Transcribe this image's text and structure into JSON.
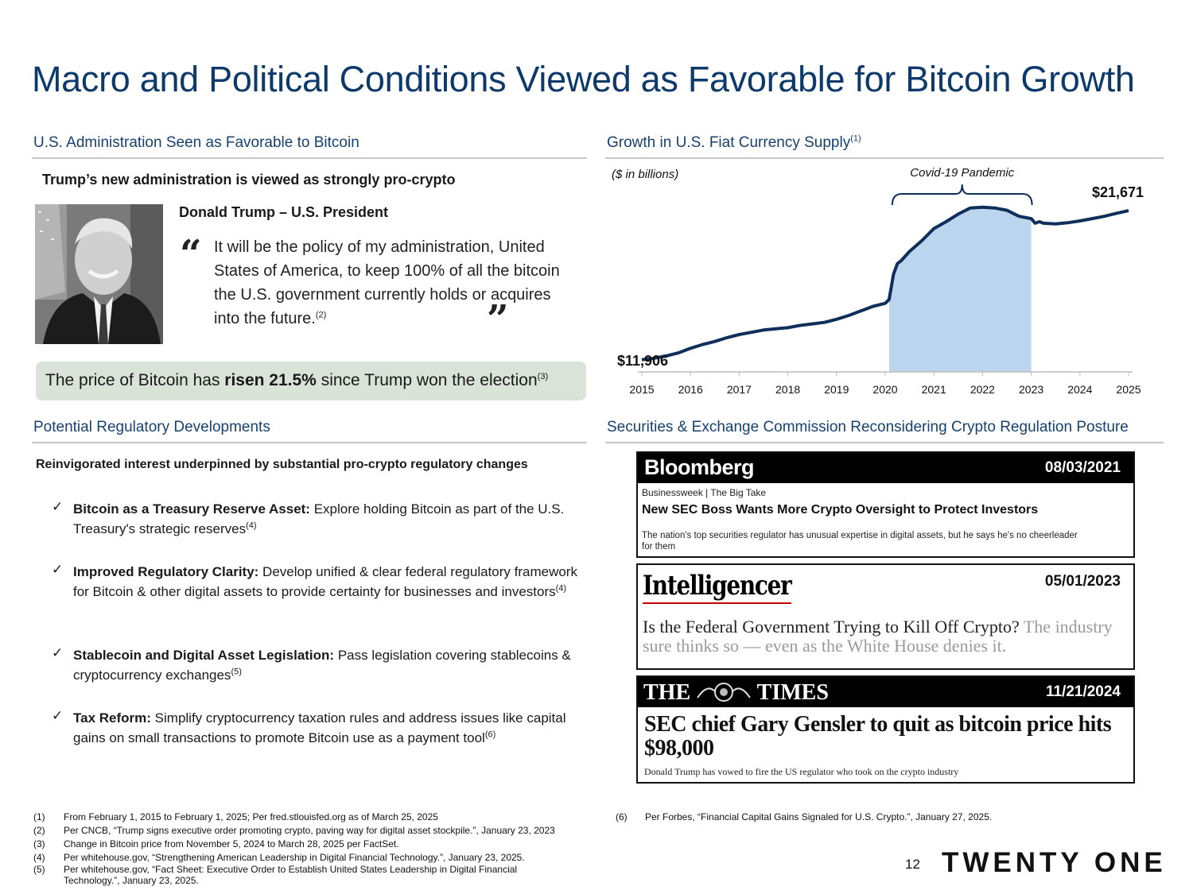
{
  "title": "Macro and Political Conditions Viewed as Favorable for Bitcoin Growth",
  "left_top": {
    "heading": "U.S. Administration Seen as Favorable to Bitcoin",
    "lead": "Trump’s new administration is viewed as strongly pro-crypto",
    "speaker": "Donald Trump – U.S. President",
    "quote": "It will be the policy of my administration, United States of America, to keep 100% of all the bitcoin the U.S. government currently holds or acquires into the future.",
    "quote_note": "(2)",
    "open_quote": "“",
    "close_quote": "”",
    "callout_pre": "The price of Bitcoin has ",
    "callout_bold": "risen 21.5%",
    "callout_post": " since Trump won the election",
    "callout_note": "(3)"
  },
  "left_bottom": {
    "heading": "Potential Regulatory Developments",
    "lead": "Reinvigorated interest underpinned by substantial pro-crypto regulatory changes",
    "check_symbol": "✓",
    "items": [
      {
        "title": "Bitcoin as a Treasury Reserve Asset:",
        "text": " Explore holding Bitcoin as part of the U.S. Treasury's strategic reserves",
        "note": "(4)"
      },
      {
        "title": "Improved Regulatory Clarity:",
        "text": " Develop unified & clear federal regulatory framework for Bitcoin & other digital assets to provide certainty for businesses and investors",
        "note": "(4)"
      },
      {
        "title": "Stablecoin and Digital Asset Legislation:",
        "text": " Pass legislation covering stablecoins & cryptocurrency exchanges",
        "note": "(5)"
      },
      {
        "title": "Tax Reform:",
        "text": " Simplify cryptocurrency taxation rules and address issues like capital gains on small transactions to promote Bitcoin use as a payment tool",
        "note": "(6)"
      }
    ]
  },
  "chart_section": {
    "heading": "Growth in U.S. Fiat Currency Supply",
    "heading_note": "(1)"
  },
  "chart_data": {
    "type": "area",
    "title": "Growth in U.S. Fiat Currency Supply",
    "unit_label": "($ in billions)",
    "annotation": "Covid-19 Pandemic",
    "start_label": "$11,906",
    "end_label": "$21,671",
    "x_ticks": [
      "2015",
      "2016",
      "2017",
      "2018",
      "2019",
      "2020",
      "2021",
      "2022",
      "2023",
      "2024",
      "2025"
    ],
    "xlim": [
      2015,
      2025
    ],
    "ylim": [
      11000,
      23500
    ],
    "highlight_range": [
      2020.08,
      2023.0
    ],
    "x": [
      2015.0,
      2015.25,
      2015.5,
      2015.75,
      2016.0,
      2016.25,
      2016.5,
      2016.75,
      2017.0,
      2017.25,
      2017.5,
      2017.75,
      2018.0,
      2018.25,
      2018.5,
      2018.75,
      2019.0,
      2019.25,
      2019.5,
      2019.75,
      2020.0,
      2020.08,
      2020.17,
      2020.25,
      2020.33,
      2020.5,
      2020.75,
      2021.0,
      2021.25,
      2021.5,
      2021.75,
      2022.0,
      2022.25,
      2022.5,
      2022.75,
      2023.0,
      2023.08,
      2023.17,
      2023.25,
      2023.5,
      2023.75,
      2024.0,
      2024.25,
      2024.5,
      2024.75,
      2025.0
    ],
    "values": [
      11906,
      12000,
      12150,
      12350,
      12650,
      12900,
      13100,
      13350,
      13550,
      13700,
      13850,
      13930,
      14000,
      14150,
      14250,
      14350,
      14550,
      14800,
      15100,
      15400,
      15600,
      15850,
      17500,
      18200,
      18400,
      19000,
      19700,
      20500,
      20950,
      21450,
      21850,
      21900,
      21850,
      21700,
      21300,
      21150,
      20850,
      20950,
      20850,
      20800,
      20880,
      21000,
      21150,
      21300,
      21500,
      21671
    ]
  },
  "right_bottom": {
    "heading": "Securities & Exchange Commission Reconsidering Crypto Regulation Posture",
    "articles": [
      {
        "source": "Bloomberg",
        "date": "08/03/2021",
        "section": "Businessweek | The Big Take",
        "headline": "New SEC Boss Wants More Crypto Oversight to Protect Investors",
        "dek": "The nation's top securities regulator has unusual expertise in digital assets, but he says he's no cheerleader for them"
      },
      {
        "source": "Intelligencer",
        "date": "05/01/2023",
        "headline": "Is the Federal Government Trying to Kill Off Crypto?",
        "dek": " The industry sure thinks so — even as the White House denies it."
      },
      {
        "source_left": "THE",
        "source_right": "TIMES",
        "date": "11/21/2024",
        "headline": "SEC chief Gary Gensler to quit as bitcoin price hits $98,000",
        "dek": "Donald Trump has vowed to fire the US regulator who took on the crypto industry"
      }
    ]
  },
  "footnotes": [
    {
      "num": "(1)",
      "text": "From February 1, 2015 to February 1, 2025; Per fred.stlouisfed.org as of March 25, 2025"
    },
    {
      "num": "(2)",
      "text": "Per CNCB, “Trump signs executive order promoting crypto, paving way for digital asset stockpile.”, January 23, 2023"
    },
    {
      "num": "(3)",
      "text": "Change in Bitcoin price from November 5, 2024 to March 28, 2025 per FactSet."
    },
    {
      "num": "(4)",
      "text": "Per whitehouse.gov, “Strengthening American Leadership in Digital Financial Technology.”, January 23, 2025."
    },
    {
      "num": "(5)",
      "text": "Per whitehouse.gov, “Fact Sheet: Executive Order to Establish United States Leadership in Digital Financial Technology.”, January 23, 2025."
    },
    {
      "num": "(6)",
      "text": "Per Forbes, “Financial Capital Gains Signaled for U.S. Crypto.”, January 27, 2025."
    }
  ],
  "page_number": "12",
  "brand": "TWENTY ONE"
}
